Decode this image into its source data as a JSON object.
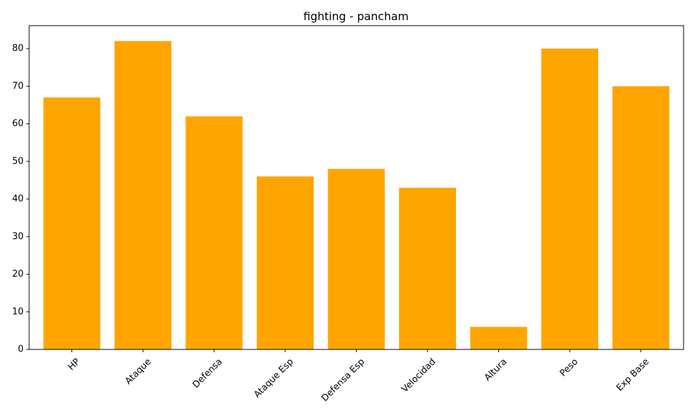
{
  "chart_data": {
    "type": "bar",
    "title": "fighting - pancham",
    "xlabel": "",
    "ylabel": "",
    "categories": [
      "HP",
      "Ataque",
      "Defensa",
      "Ataque Esp",
      "Defensa Esp",
      "Velocidad",
      "Altura",
      "Peso",
      "Exp Base"
    ],
    "values": [
      67,
      82,
      62,
      46,
      48,
      43,
      6,
      80,
      70
    ],
    "ylim": [
      0,
      86.1
    ],
    "yticks": [
      0,
      10,
      20,
      30,
      40,
      50,
      60,
      70,
      80
    ],
    "bar_color": "#ffa500",
    "grid": false,
    "legend": "none"
  }
}
